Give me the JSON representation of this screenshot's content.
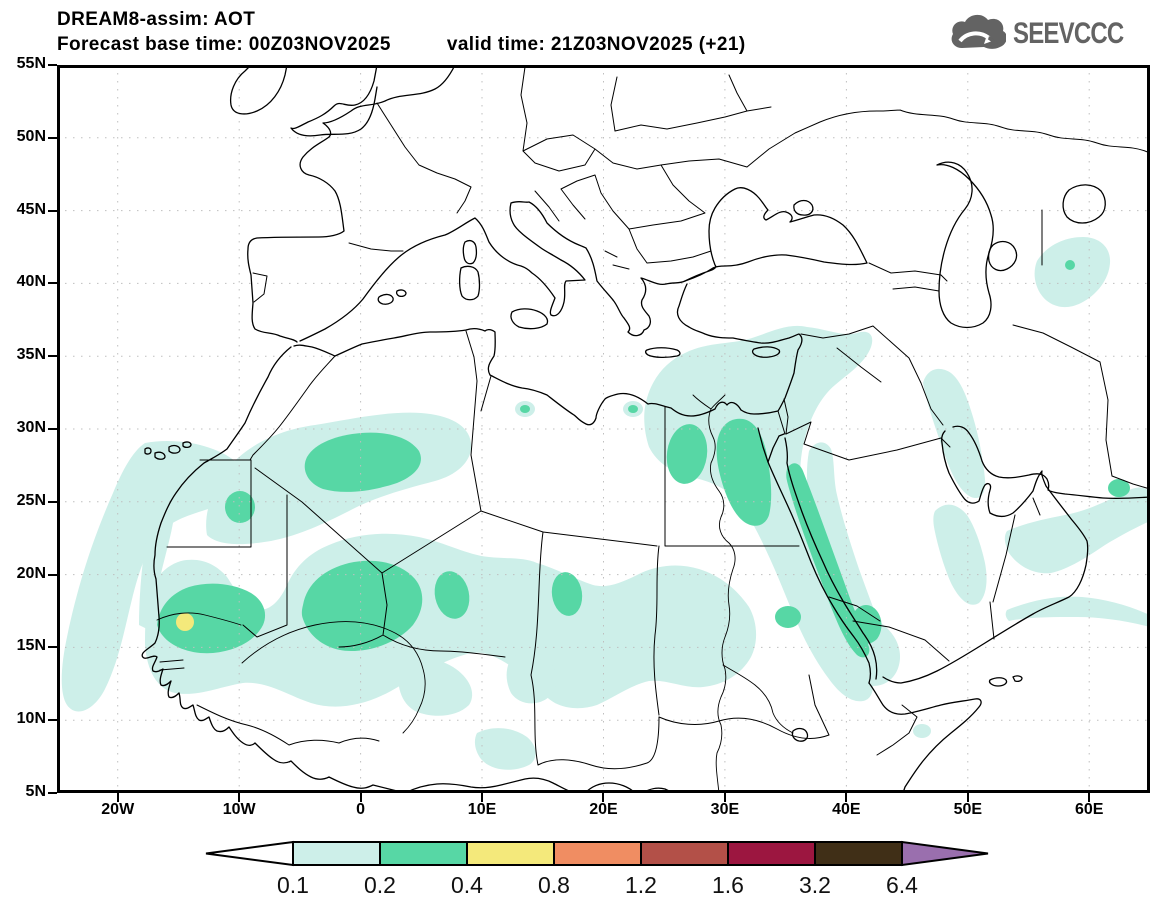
{
  "header": {
    "product_line": "DREAM8-assim: AOT",
    "base_time_line": "Forecast base time: 00Z03NOV2025",
    "valid_time_line": "valid time: 21Z03NOV2025 (+21)"
  },
  "logo": {
    "text": "SEEVCCC",
    "icon": "cloud-arrow-icon",
    "color": "#636363"
  },
  "map": {
    "region": "Europe, North Africa and Middle East",
    "projection": "cylindrical lat-lon",
    "lat_ticks": [
      "55N",
      "50N",
      "45N",
      "40N",
      "35N",
      "30N",
      "25N",
      "20N",
      "15N",
      "10N",
      "5N"
    ],
    "lon_ticks": [
      "20W",
      "10W",
      "0",
      "10E",
      "20E",
      "30E",
      "40E",
      "50E",
      "60E"
    ],
    "extent": {
      "west": "25W",
      "east": "65E",
      "south": "5N",
      "north": "55N"
    },
    "gridlines": "dotted, every 5 deg lat / 10 deg lon"
  },
  "colorbar": {
    "tick_labels": [
      "0.1",
      "0.2",
      "0.4",
      "0.8",
      "1.2",
      "1.6",
      "3.2",
      "6.4"
    ],
    "under_color": "#ffffff",
    "bin_colors": [
      "#cdefe9",
      "#57d7a5",
      "#f4e97b",
      "#f08d62",
      "#b35048",
      "#9c1640",
      "#402f17"
    ],
    "over_color": "#9a6fae"
  },
  "aot_field": {
    "quantity": "Aerosol Optical Thickness (AOT)",
    "features": [
      {
        "region": "Atlantic arc off West Africa",
        "level": "0.1-0.2"
      },
      {
        "region": "Western Sahara / N Mauritania / W Algeria",
        "level": "0.2-0.4 cores"
      },
      {
        "region": "Senegal - SW Mali",
        "level": "local max 0.4-0.8"
      },
      {
        "region": "Sahel band Mali-Niger-Chad-Sudan",
        "level": "0.1-0.4"
      },
      {
        "region": "NE Libya / Egypt / Nile valley",
        "level": "0.2-0.4"
      },
      {
        "region": "Eastern Mediterranean / Levant",
        "level": "0.1-0.2"
      },
      {
        "region": "Red Sea coasts",
        "level": "0.2-0.4"
      },
      {
        "region": "Persian Gulf / Gulf of Oman coasts",
        "level": "0.1-0.2"
      },
      {
        "region": "Zagros / Iraq-Iran border",
        "level": "0.1-0.2"
      },
      {
        "region": "Turkmenistan east of Caspian",
        "level": "0.1-0.2"
      }
    ]
  }
}
